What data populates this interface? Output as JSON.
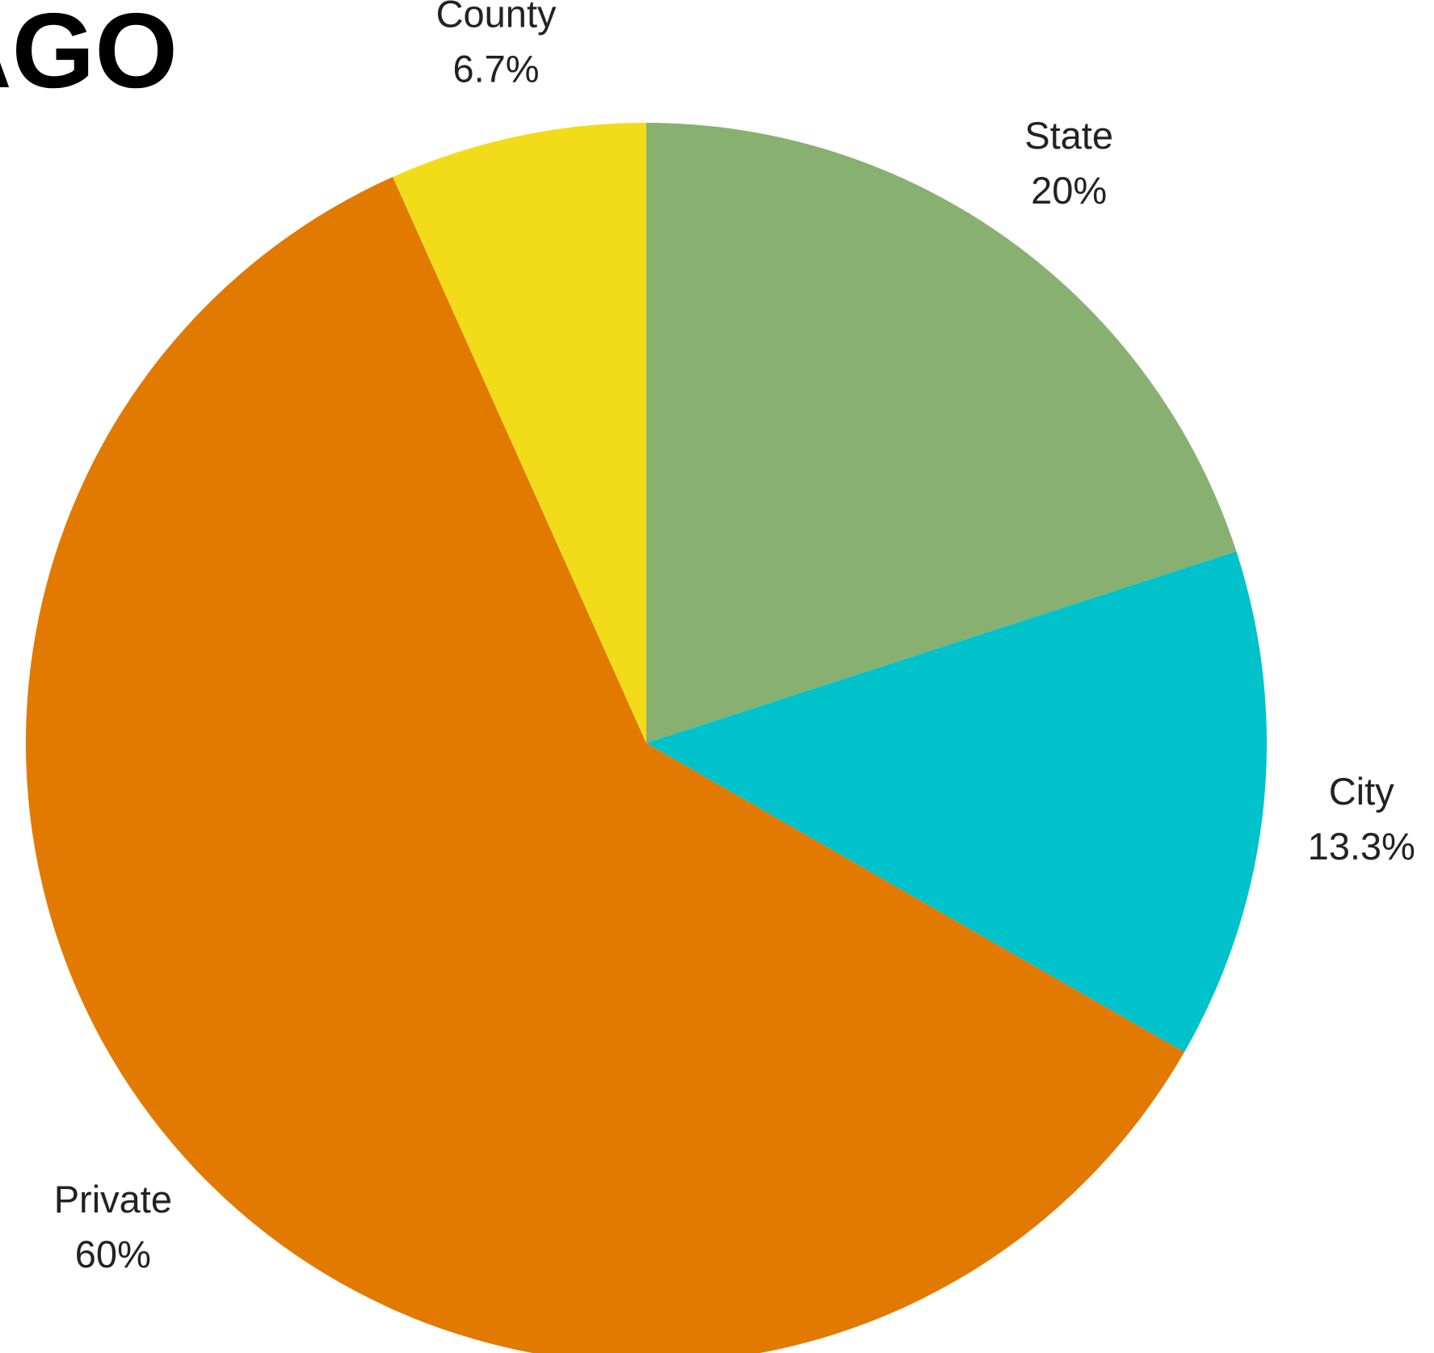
{
  "chart_data": {
    "type": "pie",
    "title": "AGO",
    "categories": [
      "State",
      "City",
      "Private",
      "County"
    ],
    "values": [
      20,
      13.3,
      60,
      6.7
    ],
    "percent_labels": [
      "20%",
      "13.3%",
      "60%",
      "6.7%"
    ],
    "colors": [
      "#87b071",
      "#00c2cb",
      "#e27900",
      "#f2dc1a"
    ],
    "start_angle": "12 o'clock",
    "direction": "clockwise",
    "legend": "none"
  }
}
